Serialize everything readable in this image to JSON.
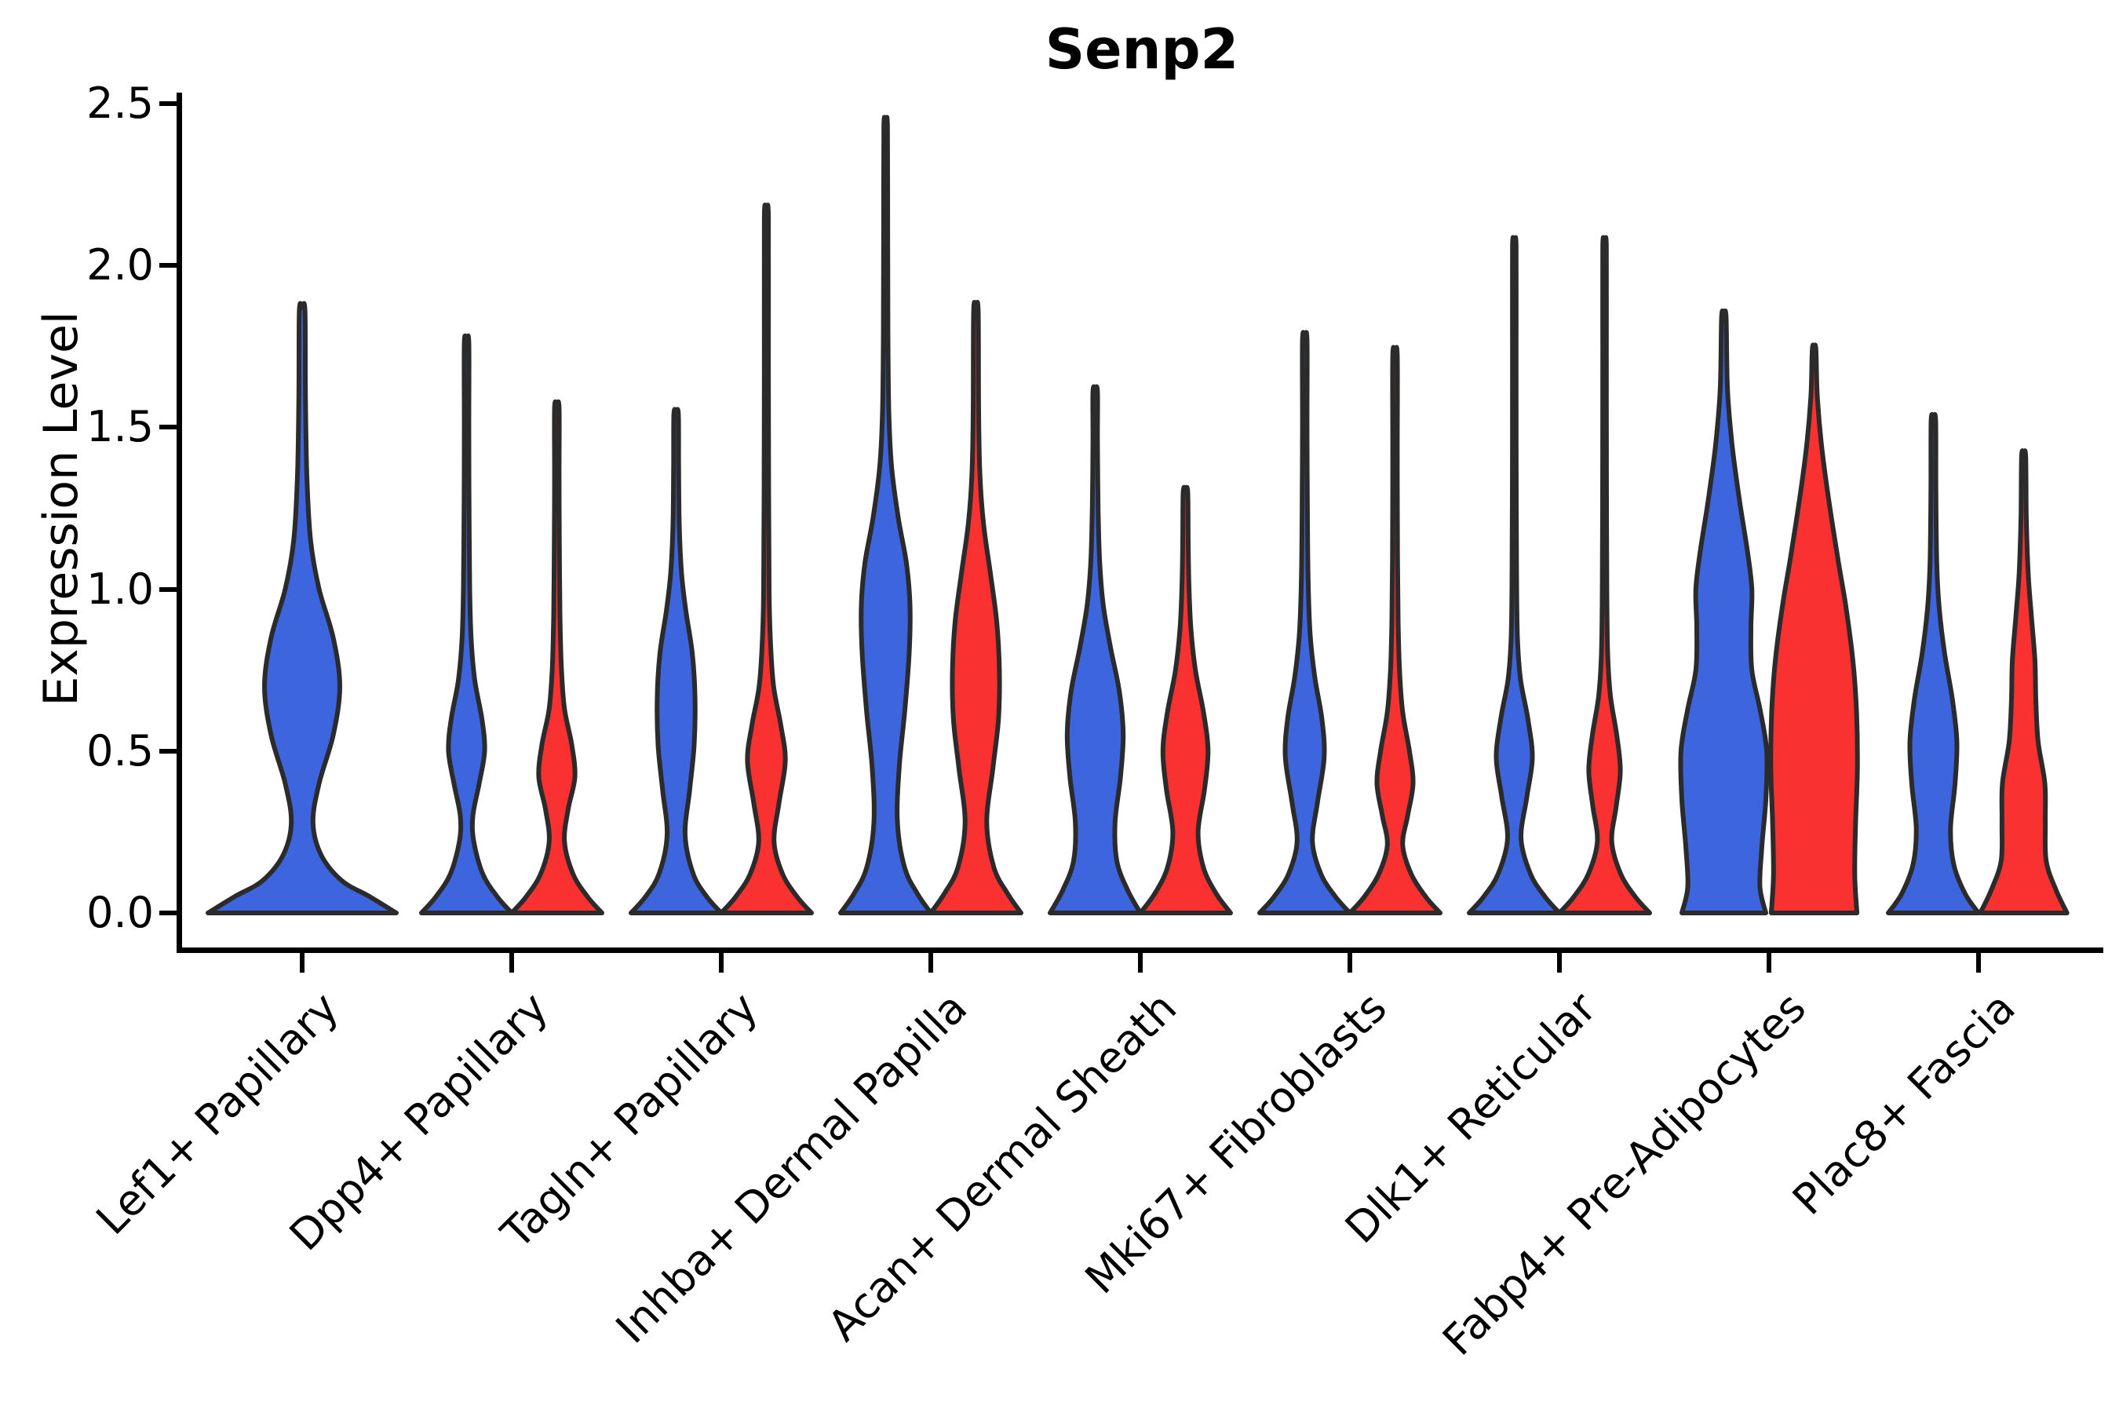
{
  "chart_data": {
    "type": "violin",
    "title": "Senp2",
    "ylabel": "Expression Level",
    "yticks": [
      "0.0",
      "0.5",
      "1.0",
      "1.5",
      "2.0",
      "2.5"
    ],
    "ytick_values": [
      0,
      0.5,
      1.0,
      1.5,
      2.0,
      2.5
    ],
    "ylim": [
      0,
      2.5
    ],
    "grid": false,
    "legend": "none",
    "categories": [
      "Lef1+ Papillary",
      "Dpp4+ Papillary",
      "Tagln+ Papillary",
      "Inhba+ Dermal Papilla",
      "Acan+ Dermal Sheath",
      "Mki67+ Fibroblasts",
      "Dlk1+ Reticular",
      "Fabp4+ Pre-Adipocytes",
      "Plac8+ Fascia"
    ],
    "colors": {
      "blue": "#3D66DE",
      "red": "#F93131",
      "outline": "#2B2B2B"
    },
    "violins": [
      {
        "category_index": 0,
        "series": "blue",
        "layout": "solo",
        "max": 1.86,
        "profile": [
          [
            0,
            1.0
          ],
          [
            0.05,
            0.72
          ],
          [
            0.1,
            0.42
          ],
          [
            0.18,
            0.2
          ],
          [
            0.28,
            0.115
          ],
          [
            0.4,
            0.18
          ],
          [
            0.55,
            0.33
          ],
          [
            0.7,
            0.4
          ],
          [
            0.85,
            0.33
          ],
          [
            1.0,
            0.18
          ],
          [
            1.15,
            0.09
          ],
          [
            1.35,
            0.05
          ],
          [
            1.6,
            0.035
          ],
          [
            1.86,
            0.03
          ]
        ]
      },
      {
        "category_index": 1,
        "series": "blue",
        "layout": "left",
        "max": 1.76,
        "profile": [
          [
            0,
            1.0
          ],
          [
            0.05,
            0.68
          ],
          [
            0.12,
            0.36
          ],
          [
            0.22,
            0.16
          ],
          [
            0.3,
            0.14
          ],
          [
            0.4,
            0.28
          ],
          [
            0.5,
            0.4
          ],
          [
            0.6,
            0.34
          ],
          [
            0.72,
            0.18
          ],
          [
            0.85,
            0.1
          ],
          [
            1.0,
            0.07
          ],
          [
            1.25,
            0.055
          ],
          [
            1.5,
            0.05
          ],
          [
            1.76,
            0.05
          ]
        ]
      },
      {
        "category_index": 1,
        "series": "red",
        "layout": "right",
        "max": 1.56,
        "profile": [
          [
            0,
            1.0
          ],
          [
            0.05,
            0.68
          ],
          [
            0.12,
            0.36
          ],
          [
            0.22,
            0.17
          ],
          [
            0.32,
            0.25
          ],
          [
            0.42,
            0.4
          ],
          [
            0.52,
            0.33
          ],
          [
            0.63,
            0.17
          ],
          [
            0.76,
            0.1
          ],
          [
            0.92,
            0.07
          ],
          [
            1.15,
            0.055
          ],
          [
            1.35,
            0.05
          ],
          [
            1.56,
            0.05
          ]
        ]
      },
      {
        "category_index": 2,
        "series": "blue",
        "layout": "left",
        "max": 1.54,
        "profile": [
          [
            0,
            1.0
          ],
          [
            0.05,
            0.68
          ],
          [
            0.12,
            0.38
          ],
          [
            0.24,
            0.2
          ],
          [
            0.38,
            0.3
          ],
          [
            0.52,
            0.4
          ],
          [
            0.66,
            0.42
          ],
          [
            0.8,
            0.36
          ],
          [
            0.93,
            0.22
          ],
          [
            1.05,
            0.12
          ],
          [
            1.2,
            0.07
          ],
          [
            1.38,
            0.055
          ],
          [
            1.54,
            0.05
          ]
        ]
      },
      {
        "category_index": 2,
        "series": "red",
        "layout": "right",
        "max": 2.15,
        "profile": [
          [
            0,
            1.0
          ],
          [
            0.05,
            0.68
          ],
          [
            0.12,
            0.36
          ],
          [
            0.22,
            0.17
          ],
          [
            0.34,
            0.28
          ],
          [
            0.47,
            0.42
          ],
          [
            0.58,
            0.32
          ],
          [
            0.7,
            0.16
          ],
          [
            0.84,
            0.09
          ],
          [
            1.0,
            0.06
          ],
          [
            1.3,
            0.05
          ],
          [
            1.7,
            0.045
          ],
          [
            2.15,
            0.045
          ]
        ]
      },
      {
        "category_index": 3,
        "series": "blue",
        "layout": "left",
        "max": 2.43,
        "profile": [
          [
            0,
            1.0
          ],
          [
            0.06,
            0.7
          ],
          [
            0.14,
            0.42
          ],
          [
            0.28,
            0.26
          ],
          [
            0.45,
            0.3
          ],
          [
            0.62,
            0.42
          ],
          [
            0.8,
            0.52
          ],
          [
            0.95,
            0.54
          ],
          [
            1.08,
            0.46
          ],
          [
            1.22,
            0.28
          ],
          [
            1.38,
            0.13
          ],
          [
            1.55,
            0.07
          ],
          [
            1.8,
            0.05
          ],
          [
            2.1,
            0.045
          ],
          [
            2.43,
            0.04
          ]
        ]
      },
      {
        "category_index": 3,
        "series": "red",
        "layout": "right",
        "max": 1.86,
        "profile": [
          [
            0,
            1.0
          ],
          [
            0.06,
            0.7
          ],
          [
            0.14,
            0.4
          ],
          [
            0.28,
            0.24
          ],
          [
            0.45,
            0.38
          ],
          [
            0.6,
            0.5
          ],
          [
            0.75,
            0.52
          ],
          [
            0.9,
            0.46
          ],
          [
            1.05,
            0.32
          ],
          [
            1.2,
            0.17
          ],
          [
            1.35,
            0.09
          ],
          [
            1.55,
            0.06
          ],
          [
            1.86,
            0.05
          ]
        ]
      },
      {
        "category_index": 4,
        "series": "blue",
        "layout": "left",
        "max": 1.61,
        "profile": [
          [
            0,
            1.0
          ],
          [
            0.07,
            0.72
          ],
          [
            0.16,
            0.48
          ],
          [
            0.28,
            0.44
          ],
          [
            0.42,
            0.56
          ],
          [
            0.55,
            0.62
          ],
          [
            0.68,
            0.54
          ],
          [
            0.82,
            0.34
          ],
          [
            0.95,
            0.18
          ],
          [
            1.08,
            0.1
          ],
          [
            1.25,
            0.065
          ],
          [
            1.45,
            0.05
          ],
          [
            1.61,
            0.05
          ]
        ]
      },
      {
        "category_index": 4,
        "series": "red",
        "layout": "right",
        "max": 1.3,
        "profile": [
          [
            0,
            1.0
          ],
          [
            0.06,
            0.68
          ],
          [
            0.14,
            0.4
          ],
          [
            0.25,
            0.28
          ],
          [
            0.38,
            0.42
          ],
          [
            0.5,
            0.5
          ],
          [
            0.62,
            0.4
          ],
          [
            0.75,
            0.22
          ],
          [
            0.88,
            0.12
          ],
          [
            1.0,
            0.08
          ],
          [
            1.15,
            0.06
          ],
          [
            1.3,
            0.05
          ]
        ]
      },
      {
        "category_index": 5,
        "series": "blue",
        "layout": "left",
        "max": 1.77,
        "profile": [
          [
            0,
            1.0
          ],
          [
            0.05,
            0.68
          ],
          [
            0.12,
            0.36
          ],
          [
            0.22,
            0.17
          ],
          [
            0.34,
            0.28
          ],
          [
            0.48,
            0.43
          ],
          [
            0.6,
            0.38
          ],
          [
            0.73,
            0.22
          ],
          [
            0.86,
            0.12
          ],
          [
            1.0,
            0.08
          ],
          [
            1.2,
            0.06
          ],
          [
            1.5,
            0.05
          ],
          [
            1.77,
            0.05
          ]
        ]
      },
      {
        "category_index": 5,
        "series": "red",
        "layout": "right",
        "max": 1.72,
        "profile": [
          [
            0,
            1.0
          ],
          [
            0.05,
            0.68
          ],
          [
            0.12,
            0.36
          ],
          [
            0.21,
            0.17
          ],
          [
            0.3,
            0.28
          ],
          [
            0.4,
            0.4
          ],
          [
            0.5,
            0.32
          ],
          [
            0.62,
            0.17
          ],
          [
            0.75,
            0.1
          ],
          [
            0.9,
            0.07
          ],
          [
            1.1,
            0.055
          ],
          [
            1.4,
            0.05
          ],
          [
            1.72,
            0.05
          ]
        ]
      },
      {
        "category_index": 6,
        "series": "blue",
        "layout": "left",
        "max": 2.06,
        "profile": [
          [
            0,
            1.0
          ],
          [
            0.05,
            0.68
          ],
          [
            0.12,
            0.36
          ],
          [
            0.23,
            0.15
          ],
          [
            0.36,
            0.28
          ],
          [
            0.48,
            0.4
          ],
          [
            0.6,
            0.3
          ],
          [
            0.72,
            0.14
          ],
          [
            0.85,
            0.07
          ],
          [
            1.05,
            0.05
          ],
          [
            1.4,
            0.042
          ],
          [
            1.75,
            0.04
          ],
          [
            2.06,
            0.04
          ]
        ]
      },
      {
        "category_index": 6,
        "series": "red",
        "layout": "right",
        "max": 2.06,
        "profile": [
          [
            0,
            1.0
          ],
          [
            0.05,
            0.68
          ],
          [
            0.12,
            0.36
          ],
          [
            0.22,
            0.16
          ],
          [
            0.33,
            0.26
          ],
          [
            0.44,
            0.35
          ],
          [
            0.55,
            0.27
          ],
          [
            0.67,
            0.13
          ],
          [
            0.8,
            0.07
          ],
          [
            1.0,
            0.05
          ],
          [
            1.4,
            0.042
          ],
          [
            1.75,
            0.04
          ],
          [
            2.06,
            0.04
          ]
        ]
      },
      {
        "category_index": 7,
        "series": "blue",
        "layout": "left",
        "max": 1.84,
        "profile": [
          [
            0,
            0.93
          ],
          [
            0.08,
            0.8
          ],
          [
            0.2,
            0.84
          ],
          [
            0.35,
            0.93
          ],
          [
            0.5,
            0.95
          ],
          [
            0.63,
            0.8
          ],
          [
            0.75,
            0.62
          ],
          [
            0.88,
            0.6
          ],
          [
            1.0,
            0.62
          ],
          [
            1.12,
            0.52
          ],
          [
            1.28,
            0.34
          ],
          [
            1.45,
            0.18
          ],
          [
            1.62,
            0.08
          ],
          [
            1.84,
            0.05
          ]
        ]
      },
      {
        "category_index": 7,
        "series": "red",
        "layout": "right",
        "max": 1.74,
        "profile": [
          [
            0,
            0.95
          ],
          [
            0.12,
            0.9
          ],
          [
            0.28,
            0.92
          ],
          [
            0.45,
            0.96
          ],
          [
            0.62,
            0.94
          ],
          [
            0.78,
            0.86
          ],
          [
            0.95,
            0.7
          ],
          [
            1.1,
            0.52
          ],
          [
            1.28,
            0.32
          ],
          [
            1.45,
            0.16
          ],
          [
            1.6,
            0.07
          ],
          [
            1.74,
            0.04
          ]
        ]
      },
      {
        "category_index": 8,
        "series": "blue",
        "layout": "left",
        "max": 1.52,
        "profile": [
          [
            0,
            1.0
          ],
          [
            0.06,
            0.7
          ],
          [
            0.15,
            0.45
          ],
          [
            0.26,
            0.38
          ],
          [
            0.4,
            0.48
          ],
          [
            0.53,
            0.52
          ],
          [
            0.66,
            0.42
          ],
          [
            0.8,
            0.25
          ],
          [
            0.94,
            0.13
          ],
          [
            1.08,
            0.075
          ],
          [
            1.3,
            0.055
          ],
          [
            1.52,
            0.05
          ]
        ]
      },
      {
        "category_index": 8,
        "series": "red",
        "layout": "right",
        "max": 1.41,
        "profile": [
          [
            0,
            0.96
          ],
          [
            0.07,
            0.72
          ],
          [
            0.16,
            0.5
          ],
          [
            0.28,
            0.48
          ],
          [
            0.4,
            0.47
          ],
          [
            0.53,
            0.32
          ],
          [
            0.66,
            0.27
          ],
          [
            0.78,
            0.25
          ],
          [
            0.92,
            0.17
          ],
          [
            1.05,
            0.1
          ],
          [
            1.22,
            0.06
          ],
          [
            1.41,
            0.045
          ]
        ]
      }
    ]
  }
}
